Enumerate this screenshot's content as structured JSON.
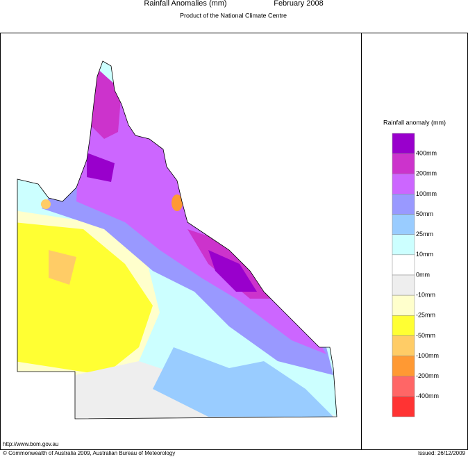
{
  "header": {
    "title": "Rainfall Anomalies (mm)",
    "period": "February 2008",
    "subtitle": "Product of the National Climate Centre"
  },
  "legend": {
    "title": "Rainfall anomaly (mm)",
    "labels": [
      "400mm",
      "200mm",
      "100mm",
      "50mm",
      "25mm",
      "10mm",
      "0mm",
      "-10mm",
      "-25mm",
      "-50mm",
      "-100mm",
      "-200mm",
      "-400mm"
    ],
    "colors": [
      "#9900cc",
      "#cc33cc",
      "#cc66ff",
      "#9999ff",
      "#99ccff",
      "#ccffff",
      "#ffffff",
      "#eeeeee",
      "#ffffcc",
      "#ffff33",
      "#ffcc66",
      "#ff9933",
      "#ff6666",
      "#ff3333"
    ]
  },
  "footer": {
    "url": "http://www.bom.gov.au",
    "copyright": "© Commonwealth of Australia 2009, Australian Bureau of Meteorology",
    "issued": "Issued: 26/12/2009"
  }
}
